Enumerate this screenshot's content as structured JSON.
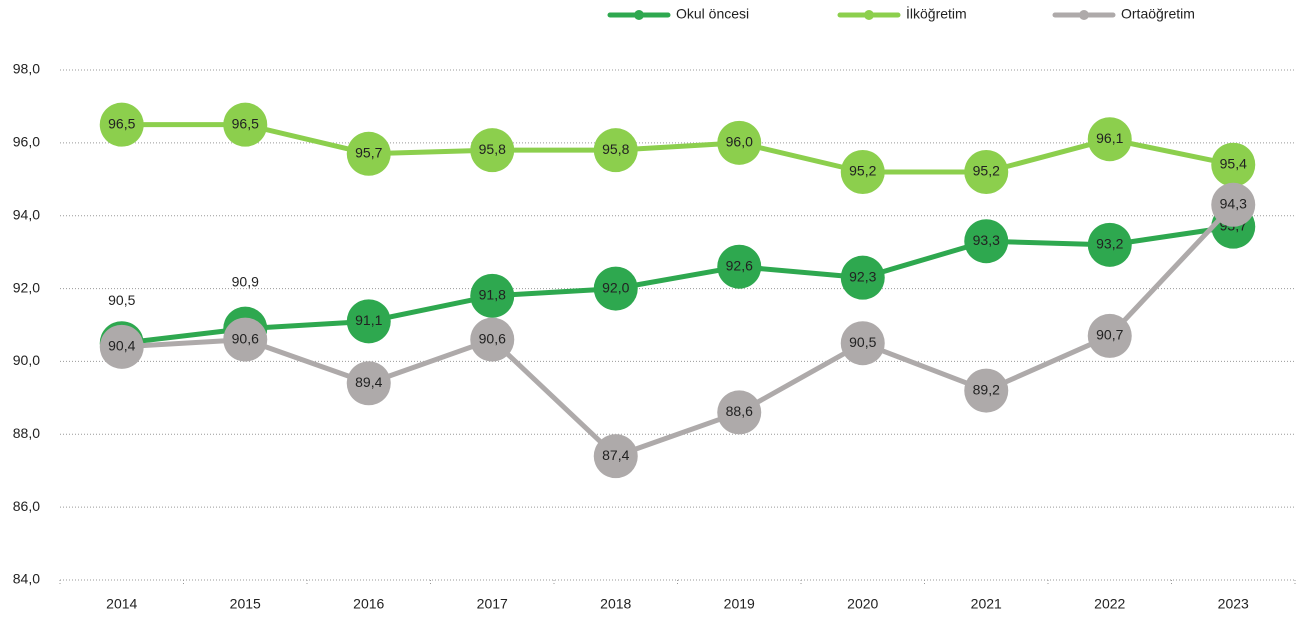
{
  "chart_data": {
    "type": "line",
    "categories": [
      "2014",
      "2015",
      "2016",
      "2017",
      "2018",
      "2019",
      "2020",
      "2021",
      "2022",
      "2023"
    ],
    "series": [
      {
        "name": "Okul öncesi",
        "color": "#2ea84f",
        "values": [
          90.5,
          90.9,
          91.1,
          91.8,
          92.0,
          92.6,
          92.3,
          93.3,
          93.2,
          93.7
        ],
        "value_labels": [
          "90,5",
          "90,9",
          "91,1",
          "91,8",
          "92,0",
          "92,6",
          "92,3",
          "93,3",
          "93,2",
          "93,7"
        ]
      },
      {
        "name": "İlköğretim",
        "color": "#8ccf4d",
        "values": [
          96.5,
          96.5,
          95.7,
          95.8,
          95.8,
          96.0,
          95.2,
          95.2,
          96.1,
          95.4
        ],
        "value_labels": [
          "96,5",
          "96,5",
          "95,7",
          "95,8",
          "95,8",
          "96,0",
          "95,2",
          "95,2",
          "96,1",
          "95,4"
        ]
      },
      {
        "name": "Ortaöğretim",
        "color": "#aeaaaa",
        "values": [
          90.4,
          90.6,
          89.4,
          90.6,
          87.4,
          88.6,
          90.5,
          89.2,
          90.7,
          94.3
        ],
        "value_labels": [
          "90,4",
          "90,6",
          "89,4",
          "90,6",
          "87,4",
          "88,6",
          "90,5",
          "89,2",
          "90,7",
          "94,3"
        ]
      }
    ],
    "ylim": [
      84,
      98
    ],
    "yticks": [
      {
        "value": 84,
        "label": "84,0"
      },
      {
        "value": 86,
        "label": "86,0"
      },
      {
        "value": 88,
        "label": "88,0"
      },
      {
        "value": 90,
        "label": "90,0"
      },
      {
        "value": 92,
        "label": "92,0"
      },
      {
        "value": 94,
        "label": "94,0"
      },
      {
        "value": 96,
        "label": "96,0"
      },
      {
        "value": 98,
        "label": "98,0"
      }
    ],
    "grid": true,
    "legend": "top"
  }
}
